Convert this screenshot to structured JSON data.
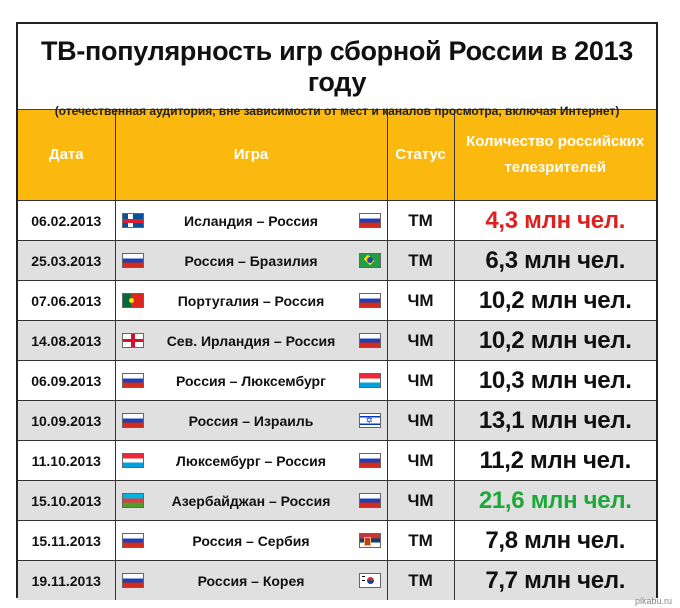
{
  "title": "ТВ-популярность игр сборной России в 2013 году",
  "subtitle": "(отечественная аудитория, вне зависимости от мест и каналов просмотра, включая Интернет)",
  "headers": {
    "date": "Дата",
    "game": "Игра",
    "status": "Статус",
    "viewers_line1": "Количество российских",
    "viewers_line2": "телезрителей"
  },
  "rows": [
    {
      "date": "06.02.2013",
      "game": "Исландия – Россия",
      "status": "ТМ",
      "viewers": "4,3 млн чел."
    },
    {
      "date": "25.03.2013",
      "game": "Россия – Бразилия",
      "status": "ТМ",
      "viewers": "6,3 млн чел."
    },
    {
      "date": "07.06.2013",
      "game": "Португалия – Россия",
      "status": "ЧМ",
      "viewers": "10,2 млн чел."
    },
    {
      "date": "14.08.2013",
      "game": "Сев. Ирландия – Россия",
      "status": "ЧМ",
      "viewers": "10,2 млн чел."
    },
    {
      "date": "06.09.2013",
      "game": "Россия – Люксембург",
      "status": "ЧМ",
      "viewers": "10,3 млн чел."
    },
    {
      "date": "10.09.2013",
      "game": "Россия – Израиль",
      "status": "ЧМ",
      "viewers": "13,1 млн чел."
    },
    {
      "date": "11.10.2013",
      "game": "Люксембург – Россия",
      "status": "ЧМ",
      "viewers": "11,2 млн чел."
    },
    {
      "date": "15.10.2013",
      "game": "Азербайджан – Россия",
      "status": "ЧМ",
      "viewers": "21,6 млн чел."
    },
    {
      "date": "15.11.2013",
      "game": "Россия – Сербия",
      "status": "ТМ",
      "viewers": "7,8 млн чел."
    },
    {
      "date": "19.11.2013",
      "game": "Россия – Корея",
      "status": "ТМ",
      "viewers": "7,7 млн чел."
    }
  ],
  "colors": {
    "header_bg": "#fbb80f",
    "min_value": "#e02020",
    "max_value": "#1fa83a",
    "alt_row": "#e0e0e0"
  },
  "watermark": "pikabu.ru"
}
